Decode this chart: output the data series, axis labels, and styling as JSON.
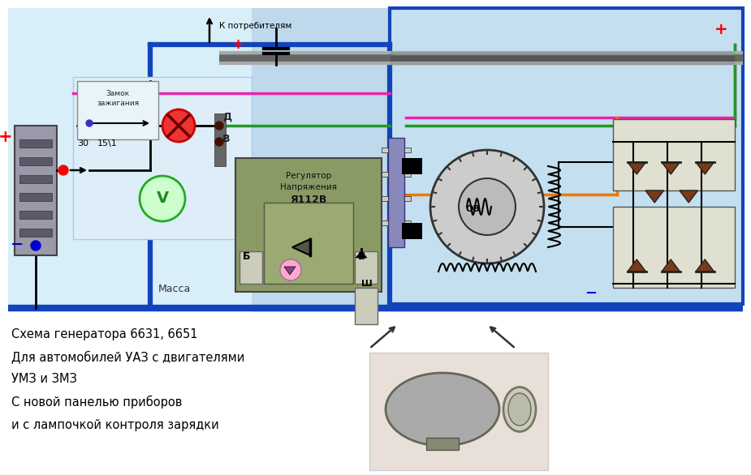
{
  "bg_color": "#ffffff",
  "fig_width": 9.25,
  "fig_height": 5.86,
  "dpi": 100,
  "title_lines": [
    "Схема генератора 6631, 6651",
    "Для автомобилей УАЗ с двигателями",
    "УМЗ и ЗМЗ",
    "С новой панелью приборов",
    "и с лампочкой контроля зарядки"
  ],
  "diagram_bg": "#bdd9eb",
  "gen_area_bg": "#c4e0f0",
  "left_panel_bg": "#d8eef8",
  "reg_box_bg": "#8a9a65",
  "reg_inner_bg": "#9aaa70",
  "relay_bg": "#888877",
  "diode_color": "#7a3a18",
  "connector_color": "#9999cc",
  "blue_wire": "#1144bb",
  "green_wire": "#229922",
  "pink_wire": "#ee22aa",
  "orange_wire": "#ee7700",
  "gray_bus": "#888888",
  "dark_red_wire": "#771100",
  "bus_blue_lw": 4.5,
  "green_lw": 2.5,
  "pink_lw": 2.5,
  "orange_lw": 2.5,
  "gray_lw": 5.0
}
